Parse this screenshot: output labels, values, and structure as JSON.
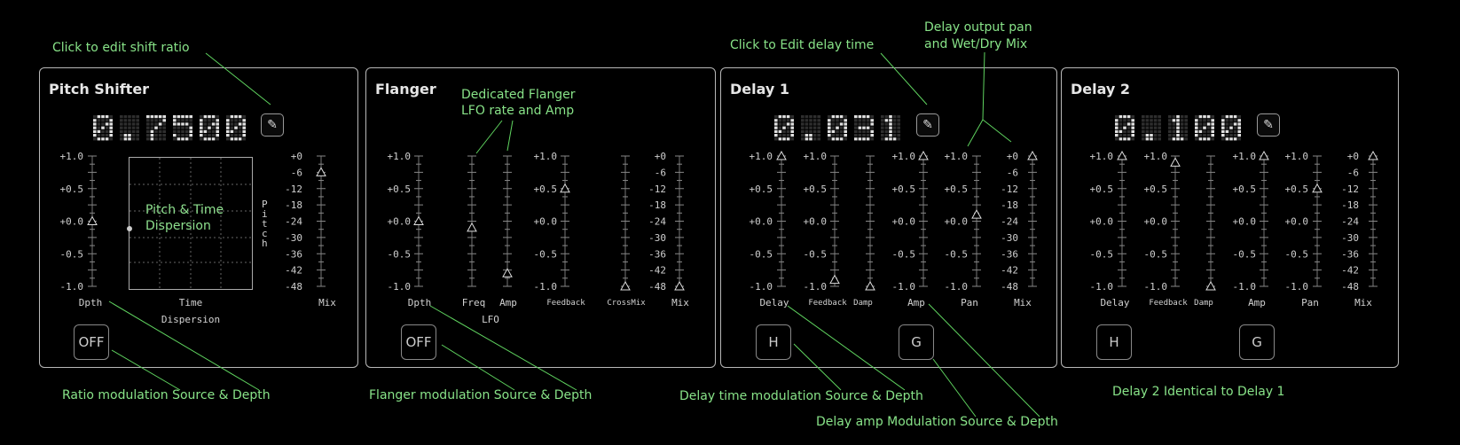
{
  "colors": {
    "annotation": "#88e388",
    "text": "#d8d8d8",
    "border": "#b8b8b8"
  },
  "scale_labels": [
    "+1.0",
    "+0.5",
    "+0.0",
    "-0.5",
    "-1.0"
  ],
  "mix_labels": [
    "+0",
    "-6",
    "-12",
    "-18",
    "-24",
    "-30",
    "-36",
    "-42",
    "-48"
  ],
  "pitch_shifter": {
    "title": "Pitch Shifter",
    "display": "0.7500",
    "edit_icon": "pencil-icon",
    "dispersion_text": [
      "Pitch & Time",
      "Dispersion"
    ],
    "dispersion_vertical": "Pitch",
    "labels": {
      "depth": "Dpth",
      "time": "Time",
      "dispersion": "Dispersion",
      "mix": "Mix"
    },
    "values": {
      "depth": 0.0,
      "mix_db": -6
    },
    "mod_button": "OFF"
  },
  "flanger": {
    "title": "Flanger",
    "labels": {
      "depth": "Dpth",
      "freq": "Freq",
      "amp": "Amp",
      "lfo": "LFO",
      "feedback": "Feedback",
      "crossmix": "CrossMix",
      "mix": "Mix"
    },
    "values": {
      "depth": 0.0,
      "freq": -0.1,
      "amp": -0.8,
      "feedback": 0.5,
      "crossmix": -1.0,
      "mix_db": -48
    },
    "mod_button": "OFF"
  },
  "delay1": {
    "title": "Delay 1",
    "display": "0.031",
    "edit_icon": "pencil-icon",
    "labels": {
      "delay": "Delay",
      "feedback": "Feedback",
      "damp": "Damp",
      "amp": "Amp",
      "pan": "Pan",
      "mix": "Mix"
    },
    "values": {
      "delay": 1.0,
      "feedback": -0.9,
      "damp": -1.0,
      "amp": 1.0,
      "pan": 0.1,
      "mix_db": 0
    },
    "mod_buttons": [
      "H",
      "G"
    ]
  },
  "delay2": {
    "title": "Delay 2",
    "display": "0.100",
    "edit_icon": "pencil-icon",
    "labels": {
      "delay": "Delay",
      "feedback": "Feedback",
      "damp": "Damp",
      "amp": "Amp",
      "pan": "Pan",
      "mix": "Mix"
    },
    "values": {
      "delay": 1.0,
      "feedback": 0.9,
      "damp": -1.0,
      "amp": 1.0,
      "pan": 0.5,
      "mix_db": 0
    },
    "mod_buttons": [
      "H",
      "G"
    ]
  },
  "annotations": {
    "edit_shift": "Click to edit shift ratio",
    "flanger_lfo": [
      "Dedicated Flanger",
      "LFO rate and Amp"
    ],
    "edit_delay": "Click to Edit delay time",
    "delay_pan": [
      "Delay output pan",
      "and Wet/Dry Mix"
    ],
    "ratio_mod": "Ratio modulation  Source & Depth",
    "flanger_mod": "Flanger modulation Source & Depth",
    "delay_time_mod": "Delay time modulation Source & Depth",
    "delay_amp_mod": "Delay amp Modulation Source & Depth",
    "delay2_identical": "Delay 2 Identical to Delay 1"
  }
}
